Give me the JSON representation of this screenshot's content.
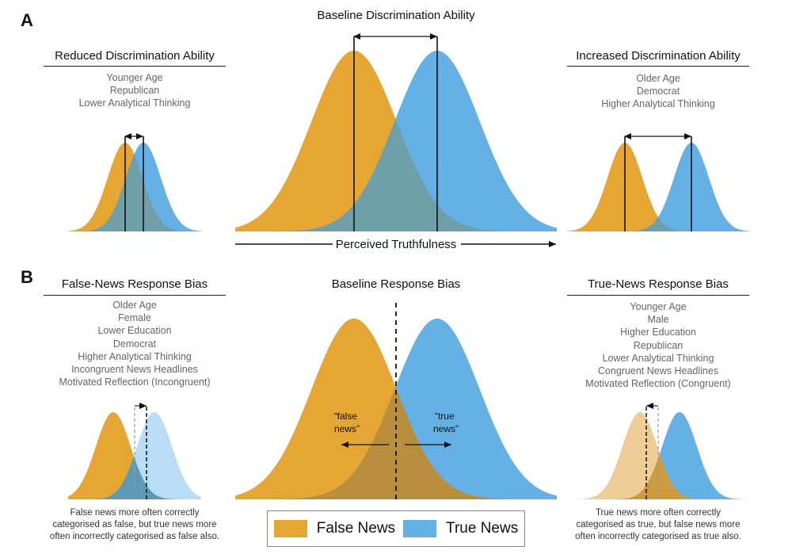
{
  "colors": {
    "false_news": "#E5A634",
    "true_news": "#65B1E6",
    "overlap": "#6F9FA9",
    "light_false": "#F0CC97",
    "light_true": "#B9DDF4"
  },
  "panelA": {
    "letter": "A",
    "center_heading": "Baseline Discrimination Ability",
    "axis_label": "Perceived Truthfulness",
    "left": {
      "heading": "Reduced Discrimination Ability",
      "factors": [
        "Younger Age",
        "Republican",
        "Lower Analytical Thinking"
      ]
    },
    "right": {
      "heading": "Increased Discrimination Ability",
      "factors": [
        "Older Age",
        "Democrat",
        "Higher Analytical Thinking"
      ]
    }
  },
  "panelB": {
    "letter": "B",
    "center_heading": "Baseline Response Bias",
    "false_label": [
      "“false",
      "news”"
    ],
    "true_label": [
      "“true",
      "news”"
    ],
    "left": {
      "heading": "False-News Response Bias",
      "factors": [
        "Older Age",
        "Female",
        "Lower Education",
        "Democrat",
        "Higher Analytical Thinking",
        "Incongruent News Headlines",
        "Motivated Reflection (Incongruent)"
      ],
      "caption": [
        "False news more often correctly",
        "categorised as false, but true news more",
        "often incorrectly categorised as false also."
      ]
    },
    "right": {
      "heading": "True-News Response Bias",
      "factors": [
        "Younger Age",
        "Male",
        "Higher Education",
        "Republican",
        "Lower Analytical Thinking",
        "Congruent News Headlines",
        "Motivated Reflection (Congruent)"
      ],
      "caption": [
        "True news more often correctly",
        "categorised as true, but false news more",
        "often incorrectly categorised as true also."
      ]
    }
  },
  "legend": {
    "false_label": "False News",
    "true_label": "True News"
  }
}
